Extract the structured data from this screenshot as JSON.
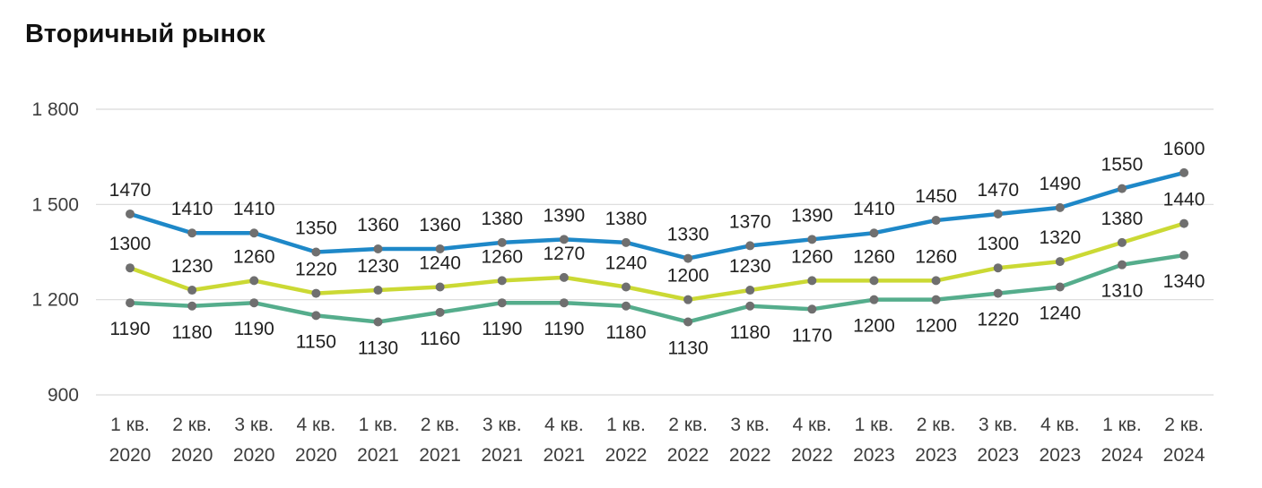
{
  "title": "Вторичный рынок",
  "chart_data": {
    "type": "line",
    "title": "Вторичный рынок",
    "xlabel": "",
    "ylabel": "",
    "grid": true,
    "legend_position": "none",
    "ylim": [
      900,
      1800
    ],
    "y_axis": {
      "ticks": [
        {
          "value": 1800,
          "label": "1 800"
        },
        {
          "value": 1500,
          "label": "1 500"
        },
        {
          "value": 1200,
          "label": "1 200"
        },
        {
          "value": 900,
          "label": "900"
        }
      ]
    },
    "categories": [
      {
        "quarter": "1 кв.",
        "year": "2020"
      },
      {
        "quarter": "2 кв.",
        "year": "2020"
      },
      {
        "quarter": "3 кв.",
        "year": "2020"
      },
      {
        "quarter": "4 кв.",
        "year": "2020"
      },
      {
        "quarter": "1 кв.",
        "year": "2021"
      },
      {
        "quarter": "2 кв.",
        "year": "2021"
      },
      {
        "quarter": "3 кв.",
        "year": "2021"
      },
      {
        "quarter": "4 кв.",
        "year": "2021"
      },
      {
        "quarter": "1 кв.",
        "year": "2022"
      },
      {
        "quarter": "2 кв.",
        "year": "2022"
      },
      {
        "quarter": "3 кв.",
        "year": "2022"
      },
      {
        "quarter": "4 кв.",
        "year": "2022"
      },
      {
        "quarter": "1 кв.",
        "year": "2023"
      },
      {
        "quarter": "2 кв.",
        "year": "2023"
      },
      {
        "quarter": "3 кв.",
        "year": "2023"
      },
      {
        "quarter": "4 кв.",
        "year": "2023"
      },
      {
        "quarter": "1 кв.",
        "year": "2024"
      },
      {
        "quarter": "2 кв.",
        "year": "2024"
      }
    ],
    "series": [
      {
        "name": "blue",
        "color": "#1e88c8",
        "label_position": "above",
        "values": [
          1470,
          1410,
          1410,
          1350,
          1360,
          1360,
          1380,
          1390,
          1380,
          1330,
          1370,
          1390,
          1410,
          1450,
          1470,
          1490,
          1550,
          1600
        ]
      },
      {
        "name": "yellow-green",
        "color": "#cbd934",
        "label_position": "above",
        "values": [
          1300,
          1230,
          1260,
          1220,
          1230,
          1240,
          1260,
          1270,
          1240,
          1200,
          1230,
          1260,
          1260,
          1260,
          1300,
          1320,
          1380,
          1440
        ]
      },
      {
        "name": "green",
        "color": "#55ad8c",
        "label_position": "below",
        "values": [
          1190,
          1180,
          1190,
          1150,
          1130,
          1160,
          1190,
          1190,
          1180,
          1130,
          1180,
          1170,
          1200,
          1200,
          1220,
          1240,
          1310,
          1340
        ]
      }
    ],
    "colors": {
      "marker": "#6f6f6f",
      "gridline": "#d9d9d9",
      "axis_text": "#3d3d3d",
      "data_label": "#212121"
    }
  }
}
